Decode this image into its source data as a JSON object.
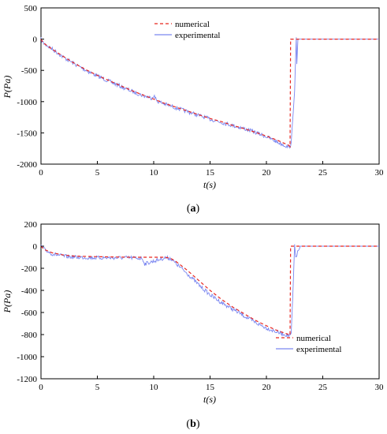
{
  "chart_data": [
    {
      "type": "line",
      "panel_label": "a",
      "xlabel": "t(s)",
      "ylabel": "P(Pa)",
      "xlim": [
        0,
        30
      ],
      "ylim": [
        -2000,
        500
      ],
      "xticks": [
        0,
        5,
        10,
        15,
        20,
        25,
        30
      ],
      "yticks": [
        500,
        0,
        -500,
        -1000,
        -1500,
        -2000
      ],
      "grid": false,
      "legend_position": "top-center",
      "series": [
        {
          "name": "numerical",
          "style": "dashed",
          "color": "#e8261f",
          "x": [
            0,
            0.2,
            1,
            2,
            3,
            4,
            5,
            6,
            7,
            8,
            9,
            10,
            11,
            12,
            13,
            14,
            15,
            16,
            17,
            18,
            19,
            20,
            21,
            22,
            22.1,
            22.15,
            23,
            25,
            30
          ],
          "y": [
            0,
            -60,
            -160,
            -280,
            -390,
            -490,
            -580,
            -660,
            -740,
            -820,
            -890,
            -960,
            -1030,
            -1090,
            -1150,
            -1210,
            -1270,
            -1320,
            -1380,
            -1430,
            -1490,
            -1550,
            -1620,
            -1700,
            -1720,
            0,
            0,
            0,
            0
          ]
        },
        {
          "name": "experimental",
          "style": "solid-noisy",
          "color": "#7a86f0",
          "x": [
            0,
            0.2,
            1,
            2,
            3,
            4,
            5,
            6,
            7,
            8,
            9,
            9.8,
            10,
            10.3,
            11,
            12,
            13,
            14,
            15,
            16,
            17,
            18,
            19,
            20,
            21,
            22,
            22.2,
            22.5,
            22.65,
            22.7,
            22.8,
            23,
            25,
            30
          ],
          "y": [
            0,
            -60,
            -160,
            -290,
            -400,
            -500,
            -590,
            -670,
            -750,
            -830,
            -900,
            -940,
            -900,
            -990,
            -1040,
            -1100,
            -1160,
            -1220,
            -1280,
            -1330,
            -1380,
            -1430,
            -1490,
            -1560,
            -1650,
            -1730,
            -1680,
            -800,
            0,
            -400,
            0,
            0,
            0,
            0
          ]
        }
      ]
    },
    {
      "type": "line",
      "panel_label": "b",
      "xlabel": "t(s)",
      "ylabel": "P(Pa)",
      "xlim": [
        0,
        30
      ],
      "ylim": [
        -1200,
        200
      ],
      "xticks": [
        0,
        5,
        10,
        15,
        20,
        25,
        30
      ],
      "yticks": [
        200,
        0,
        -200,
        -400,
        -600,
        -800,
        -1000,
        -1200
      ],
      "grid": false,
      "legend_position": "bottom-right",
      "series": [
        {
          "name": "numerical",
          "style": "dashed",
          "color": "#e8261f",
          "x": [
            0,
            0.3,
            1,
            2,
            3,
            5,
            8,
            11,
            11.5,
            12,
            13,
            14,
            15,
            16,
            17,
            18,
            19,
            20,
            21,
            22,
            22.1,
            22.15,
            23,
            25,
            30
          ],
          "y": [
            0,
            -30,
            -60,
            -80,
            -90,
            -95,
            -100,
            -100,
            -110,
            -140,
            -220,
            -310,
            -400,
            -480,
            -550,
            -610,
            -670,
            -720,
            -765,
            -800,
            -805,
            0,
            0,
            0,
            0
          ]
        },
        {
          "name": "experimental",
          "style": "solid-noisy",
          "color": "#7a86f0",
          "x": [
            0,
            0.3,
            1,
            2,
            3,
            5,
            8,
            9,
            9.2,
            11,
            11.5,
            12,
            13,
            14,
            15,
            16,
            17,
            18,
            19,
            20,
            21,
            22,
            22.2,
            22.4,
            22.5,
            22.6,
            23,
            25,
            30
          ],
          "y": [
            0,
            -30,
            -70,
            -90,
            -100,
            -105,
            -105,
            -110,
            -160,
            -105,
            -110,
            -160,
            -250,
            -350,
            -440,
            -510,
            -570,
            -630,
            -690,
            -740,
            -780,
            -810,
            -800,
            -300,
            0,
            -100,
            0,
            0,
            0
          ]
        }
      ]
    }
  ]
}
